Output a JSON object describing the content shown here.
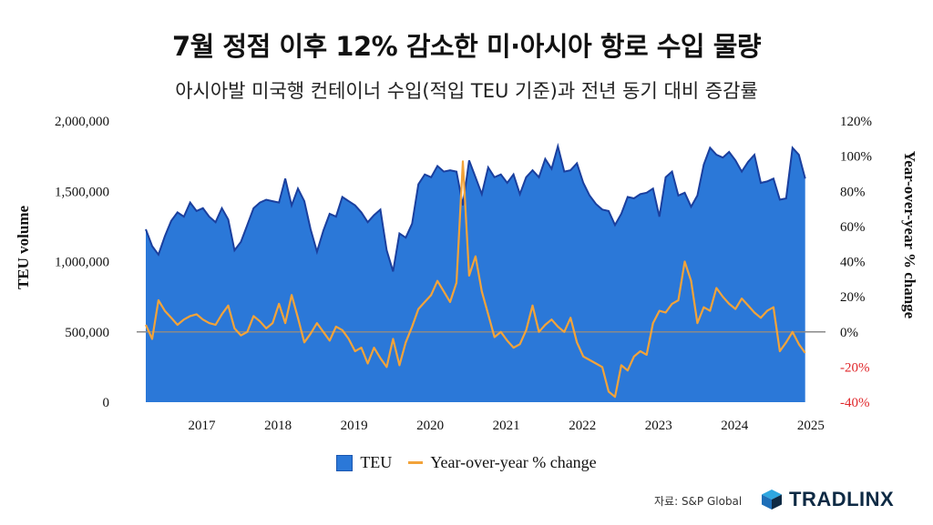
{
  "header": {
    "title": "7월 정점 이후 12% 감소한 미·아시아 항로 수입 물량",
    "subtitle": "아시아발 미국행 컨테이너 수입(적입 TEU 기준)과 전년 동기 대비 증감률"
  },
  "colors": {
    "area_fill": "#2b78d8",
    "area_edge": "#1a3f9e",
    "line": "#f2a33a",
    "zero_line": "#8a8a8a",
    "negative_tick": "#e0262a"
  },
  "chart_data": {
    "type": "area",
    "xlabel": "",
    "ylabel": "TEU volume",
    "y2label": "Year-over-year % change",
    "ylim": [
      0,
      2000000
    ],
    "y2lim": [
      -40,
      120
    ],
    "y_ticks": [
      "2,000,000",
      "1,500,000",
      "1,000,000",
      "500,000",
      "0"
    ],
    "y_tick_values": [
      2000000,
      1500000,
      1000000,
      500000,
      0
    ],
    "y2_ticks": [
      "120%",
      "100%",
      "80%",
      "60%",
      "40%",
      "20%",
      "0%",
      "-20%",
      "-40%"
    ],
    "y2_tick_values": [
      120,
      100,
      80,
      60,
      40,
      20,
      0,
      -20,
      -40
    ],
    "x_ticks": [
      "2017",
      "2018",
      "2019",
      "2020",
      "2021",
      "2022",
      "2023",
      "2024",
      "2025"
    ],
    "x_tick_values": [
      2017,
      2018,
      2019,
      2020,
      2021,
      2022,
      2023,
      2024,
      2025
    ],
    "x_start": 2016.62,
    "x_step": 0.0833,
    "series": [
      {
        "name": "TEU",
        "values": [
          1230000,
          1110000,
          1050000,
          1180000,
          1290000,
          1350000,
          1320000,
          1420000,
          1360000,
          1380000,
          1320000,
          1280000,
          1380000,
          1300000,
          1080000,
          1140000,
          1260000,
          1380000,
          1420000,
          1440000,
          1430000,
          1420000,
          1590000,
          1400000,
          1520000,
          1430000,
          1230000,
          1070000,
          1220000,
          1340000,
          1320000,
          1460000,
          1430000,
          1400000,
          1350000,
          1280000,
          1330000,
          1370000,
          1080000,
          930000,
          1200000,
          1170000,
          1270000,
          1550000,
          1620000,
          1600000,
          1680000,
          1640000,
          1650000,
          1640000,
          1400000,
          1720000,
          1600000,
          1480000,
          1670000,
          1600000,
          1620000,
          1560000,
          1620000,
          1480000,
          1600000,
          1650000,
          1600000,
          1730000,
          1660000,
          1820000,
          1640000,
          1650000,
          1700000,
          1560000,
          1470000,
          1410000,
          1370000,
          1360000,
          1260000,
          1340000,
          1460000,
          1450000,
          1480000,
          1490000,
          1520000,
          1320000,
          1600000,
          1640000,
          1470000,
          1490000,
          1390000,
          1470000,
          1690000,
          1810000,
          1760000,
          1740000,
          1780000,
          1720000,
          1640000,
          1710000,
          1760000,
          1560000,
          1570000,
          1590000,
          1440000,
          1450000,
          1810000,
          1760000,
          1590000
        ]
      },
      {
        "name": "Year-over-year % change",
        "values": [
          4,
          -4,
          18,
          12,
          8,
          4,
          7,
          9,
          10,
          7,
          5,
          4,
          10,
          15,
          2,
          -2,
          0,
          9,
          6,
          2,
          5,
          16,
          5,
          21,
          8,
          -6,
          -1,
          5,
          0,
          -5,
          3,
          1,
          -4,
          -11,
          -9,
          -18,
          -9,
          -15,
          -20,
          -4,
          -19,
          -6,
          3,
          13,
          17,
          21,
          29,
          23,
          17,
          28,
          97,
          32,
          43,
          23,
          10,
          -3,
          0,
          -5,
          -9,
          -7,
          1,
          15,
          0,
          4,
          7,
          3,
          0,
          8,
          -6,
          -14,
          -16,
          -18,
          -20,
          -34,
          -37,
          -19,
          -22,
          -14,
          -11,
          -13,
          5,
          12,
          11,
          16,
          18,
          40,
          29,
          5,
          14,
          12,
          25,
          20,
          16,
          13,
          19,
          15,
          11,
          8,
          12,
          14,
          -11,
          -6,
          0,
          -7,
          -12
        ]
      }
    ],
    "legend": [
      "TEU",
      "Year-over-year % change"
    ]
  },
  "footer": {
    "source": "자료: S&P Global",
    "brand": "TRADLINX"
  }
}
